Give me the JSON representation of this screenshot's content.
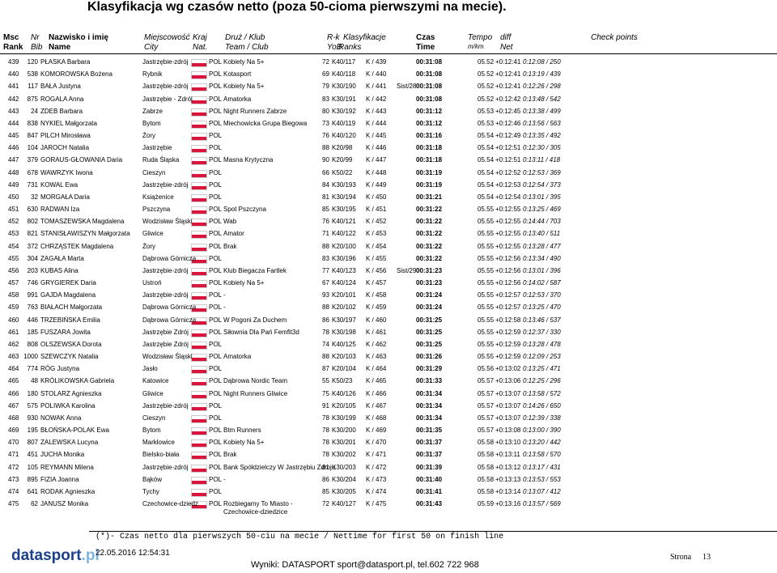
{
  "header": {
    "title": "Klasyfikacja wg czasów netto (poza 50-cioma pierwszymi na mecie).",
    "columns_top": [
      "Msc",
      "Nr",
      "Nazwisko i imię",
      "Miejscowość",
      "Kraj",
      "Druż / Klub",
      "R-k",
      "Klasyfikacje",
      "Czas",
      "Tempo",
      "diff",
      "Check points"
    ],
    "columns_bottom": [
      "Rank",
      "Bib",
      "Name",
      "City",
      "Nat.",
      "Team / Club",
      "YoB",
      "Ranks",
      "Time",
      "m/km",
      "Net"
    ]
  },
  "table": {
    "rows": [
      [
        "439",
        "120",
        "PŁASKA Barbara",
        "Jastrzębie-zdrój",
        "POL",
        "Kobiety Na 5+",
        "72",
        "K40/117",
        "K / 439",
        "",
        "00:31:08",
        "05.52",
        "+0:12:41",
        "0:12:08 / 250"
      ],
      [
        "440",
        "538",
        "KOMOROWSKA Bożena",
        "Rybnik",
        "POL",
        "Kotasport",
        "69",
        "K40/118",
        "K / 440",
        "",
        "00:31:08",
        "05.52",
        "+0:12:41",
        "0:13:19 / 439"
      ],
      [
        "441",
        "117",
        "BAŁA Justyna",
        "Jastrzębie-zdrój",
        "POL",
        "Kobiety Na 5+",
        "79",
        "K30/190",
        "K / 441",
        "Sist/28",
        "00:31:08",
        "05.52",
        "+0:12:41",
        "0:12:26 / 298"
      ],
      [
        "442",
        "875",
        "ROGALA Anna",
        "Jastrzębie - Zdrój",
        "POL",
        "Amatorka",
        "83",
        "K30/191",
        "K / 442",
        "",
        "00:31:08",
        "05.52",
        "+0:12:42",
        "0:13:48 / 542"
      ],
      [
        "443",
        "24",
        "ZDEB Barbara",
        "Zabrze",
        "POL",
        "Night Runners Zabrze",
        "80",
        "K30/192",
        "K / 443",
        "",
        "00:31:12",
        "05.53",
        "+0:12:45",
        "0:13:38 / 499"
      ],
      [
        "444",
        "838",
        "NYKIEL Małgorzata",
        "Bytom",
        "POL",
        "Miechowicka Grupa Biegowa",
        "73",
        "K40/119",
        "K / 444",
        "",
        "00:31:12",
        "05.53",
        "+0:12:46",
        "0:13:56 / 563"
      ],
      [
        "445",
        "847",
        "PILCH Mirosława",
        "Żory",
        "POL",
        "",
        "76",
        "K40/120",
        "K / 445",
        "",
        "00:31:16",
        "05.54",
        "+0:12:49",
        "0:13:35 / 492"
      ],
      [
        "446",
        "104",
        "JAROCH Natalia",
        "Jastrzębie",
        "POL",
        "",
        "88",
        "K20/98",
        "K / 446",
        "",
        "00:31:18",
        "05.54",
        "+0:12:51",
        "0:12:30 / 305"
      ],
      [
        "447",
        "379",
        "GORAUS-GŁOWANIA Daria",
        "Ruda Śląska",
        "POL",
        "Masna Krytyczna",
        "90",
        "K20/99",
        "K / 447",
        "",
        "00:31:18",
        "05.54",
        "+0:12:51",
        "0:13:11 / 418"
      ],
      [
        "448",
        "678",
        "WAWRZYK Iwona",
        "Cieszyn",
        "POL",
        "",
        "66",
        "K50/22",
        "K / 448",
        "",
        "00:31:19",
        "05.54",
        "+0:12:52",
        "0:12:53 / 369"
      ],
      [
        "449",
        "731",
        "KOWAL Ewa",
        "Jastrzębie-zdrój",
        "POL",
        "",
        "84",
        "K30/193",
        "K / 449",
        "",
        "00:31:19",
        "05.54",
        "+0:12:53",
        "0:12:54 / 373"
      ],
      [
        "450",
        "32",
        "MORGAŁA Daria",
        "Książenice",
        "POL",
        "",
        "81",
        "K30/194",
        "K / 450",
        "",
        "00:31:21",
        "05.54",
        "+0:12:54",
        "0:13:01 / 395"
      ],
      [
        "451",
        "630",
        "RADWAN Iza",
        "Pszczyna",
        "POL",
        "Spot Pszczyna",
        "85",
        "K30/195",
        "K / 451",
        "",
        "00:31:22",
        "05.55",
        "+0:12:55",
        "0:13:25 / 469"
      ],
      [
        "452",
        "802",
        "TOMASZEWSKA Magdalena",
        "Wodzisław Śląski",
        "POL",
        "Wab",
        "76",
        "K40/121",
        "K / 452",
        "",
        "00:31:22",
        "05.55",
        "+0:12:55",
        "0:14:44 / 703"
      ],
      [
        "453",
        "821",
        "STANISŁAWISZYN Małgorzata",
        "Gliwice",
        "POL",
        "Amator",
        "71",
        "K40/122",
        "K / 453",
        "",
        "00:31:22",
        "05.55",
        "+0:12:55",
        "0:13:40 / 511"
      ],
      [
        "454",
        "372",
        "CHRZĄSTEK Magdalena",
        "Żory",
        "POL",
        "Brak",
        "88",
        "K20/100",
        "K / 454",
        "",
        "00:31:22",
        "05.55",
        "+0:12:55",
        "0:13:28 / 477"
      ],
      [
        "455",
        "304",
        "ZAGAŁA Marta",
        "Dąbrowa Górnicza",
        "POL",
        "",
        "83",
        "K30/196",
        "K / 455",
        "",
        "00:31:22",
        "05.55",
        "+0:12:56",
        "0:13:34 / 490"
      ],
      [
        "456",
        "203",
        "KUBAS Alina",
        "Jastrzębie-zdrój",
        "POL",
        "Klub Biegacza Fartlek",
        "77",
        "K40/123",
        "K / 456",
        "Sist/29",
        "00:31:23",
        "05.55",
        "+0:12:56",
        "0:13:01 / 396"
      ],
      [
        "457",
        "746",
        "GRYGIEREK Daria",
        "Ustroń",
        "POL",
        "Kobiety Na 5+",
        "67",
        "K40/124",
        "K / 457",
        "",
        "00:31:23",
        "05.55",
        "+0:12:56",
        "0:14:02 / 587"
      ],
      [
        "458",
        "991",
        "GAJDA Magdalena",
        "Jastrzębie-zdrój",
        "POL",
        "-",
        "93",
        "K20/101",
        "K / 458",
        "",
        "00:31:24",
        "05.55",
        "+0:12:57",
        "0:12:53 / 370"
      ],
      [
        "459",
        "763",
        "BIAŁACH Małgorzata",
        "Dąbrowa Górnicza",
        "POL",
        "-",
        "88",
        "K20/102",
        "K / 459",
        "",
        "00:31:24",
        "05.55",
        "+0:12:57",
        "0:13:25 / 470"
      ],
      [
        "460",
        "446",
        "TRZEBIŃSKA Emilia",
        "Dąbrowa Górnicza",
        "POL",
        "W Pogoni Za Duchem",
        "86",
        "K30/197",
        "K / 460",
        "",
        "00:31:25",
        "05.55",
        "+0:12:58",
        "0:13:46 / 537"
      ],
      [
        "461",
        "185",
        "FUSZARA Jowita",
        "Jastrzębie Zdrój",
        "POL",
        "Siłownia Dla Pań Femfit3d",
        "78",
        "K30/198",
        "K / 461",
        "",
        "00:31:25",
        "05.55",
        "+0:12:59",
        "0:12:37 / 330"
      ],
      [
        "462",
        "808",
        "OLSZEWSKA Dorota",
        "Jastrzębie Zdrój",
        "POL",
        "",
        "74",
        "K40/125",
        "K / 462",
        "",
        "00:31:25",
        "05.55",
        "+0:12:59",
        "0:13:28 / 478"
      ],
      [
        "463",
        "1000",
        "SZEWCZYK Natalia",
        "Wodzisław Śląski",
        "POL",
        "Amatorka",
        "88",
        "K20/103",
        "K / 463",
        "",
        "00:31:26",
        "05.55",
        "+0:12:59",
        "0:12:09 / 253"
      ],
      [
        "464",
        "774",
        "RÓG Justyna",
        "Jasło",
        "POL",
        "",
        "87",
        "K20/104",
        "K / 464",
        "",
        "00:31:29",
        "05.56",
        "+0:13:02",
        "0:13:25 / 471"
      ],
      [
        "465",
        "48",
        "KRÓLIKOWSKA Gabriela",
        "Katowice",
        "POL",
        "Dąbrowa Nordic Team",
        "55",
        "K50/23",
        "K / 465",
        "",
        "00:31:33",
        "05.57",
        "+0:13:06",
        "0:12:25 / 296"
      ],
      [
        "466",
        "180",
        "STOLARZ Agnieszka",
        "Gliwice",
        "POL",
        "Night Runners Gliwice",
        "75",
        "K40/126",
        "K / 466",
        "",
        "00:31:34",
        "05.57",
        "+0:13:07",
        "0:13:58 / 572"
      ],
      [
        "467",
        "575",
        "POLIWKA Karolina",
        "Jastrzębie-zdrój",
        "POL",
        "",
        "91",
        "K20/105",
        "K / 467",
        "",
        "00:31:34",
        "05.57",
        "+0:13:07",
        "0:14:26 / 650"
      ],
      [
        "468",
        "930",
        "NOWAK Anna",
        "Cieszyn",
        "POL",
        "",
        "78",
        "K30/199",
        "K / 468",
        "",
        "00:31:34",
        "05.57",
        "+0:13:07",
        "0:12:39 / 338"
      ],
      [
        "469",
        "195",
        "BŁOŃSKA-POLAK Ewa",
        "Bytom",
        "POL",
        "Btm Runners",
        "78",
        "K30/200",
        "K / 469",
        "",
        "00:31:35",
        "05.57",
        "+0:13:08",
        "0:13:00 / 390"
      ],
      [
        "470",
        "807",
        "ZALEWSKA Lucyna",
        "Marklowice",
        "POL",
        "Kobiety Na 5+",
        "78",
        "K30/201",
        "K / 470",
        "",
        "00:31:37",
        "05.58",
        "+0:13:10",
        "0:13:20 / 442"
      ],
      [
        "471",
        "451",
        "JUCHA Monika",
        "Bielsko-biała",
        "POL",
        "Brak",
        "78",
        "K30/202",
        "K / 471",
        "",
        "00:31:37",
        "05.58",
        "+0:13:11",
        "0:13:58 / 570"
      ],
      [
        "472",
        "105",
        "REYMANN Milena",
        "Jastrzębie-zdrój",
        "POL",
        "Bank Spółdzielczy W Jastrzębiu Zdroju",
        "81",
        "K30/203",
        "K / 472",
        "",
        "00:31:39",
        "05.58",
        "+0:13:12",
        "0:13:17 / 431"
      ],
      [
        "473",
        "895",
        "FIZIA Joanna",
        "Bąków",
        "POL",
        "-",
        "86",
        "K30/204",
        "K / 473",
        "",
        "00:31:40",
        "05.58",
        "+0:13:13",
        "0:13:53 / 553"
      ],
      [
        "474",
        "641",
        "RODAK Agnieszka",
        "Tychy",
        "POL",
        "",
        "85",
        "K30/205",
        "K / 474",
        "",
        "00:31:41",
        "05.58",
        "+0:13:14",
        "0:13:07 / 412"
      ],
      [
        "475",
        "62",
        "JANUSZ Monika",
        "Czechowice-dziedz",
        "POL",
        "Rozbiegamy To Miasto - Czechowice-dziedzice",
        "72",
        "K40/127",
        "K / 475",
        "",
        "00:31:43",
        "05.59",
        "+0:13:16",
        "0:13:57 / 569"
      ]
    ]
  },
  "footer": {
    "note": "(*)- Czas netto dla pierwszych 50-ciu na mecie / Nettime for first 50 on finish line",
    "logo": "datasport",
    "logo_suffix": ".pl",
    "date": "22.05.2016 12:54:31",
    "results": "Wyniki: DATASPORT sport@datasport.pl, tel.602 722 968",
    "page_label": "Strona",
    "page_number": "13"
  }
}
